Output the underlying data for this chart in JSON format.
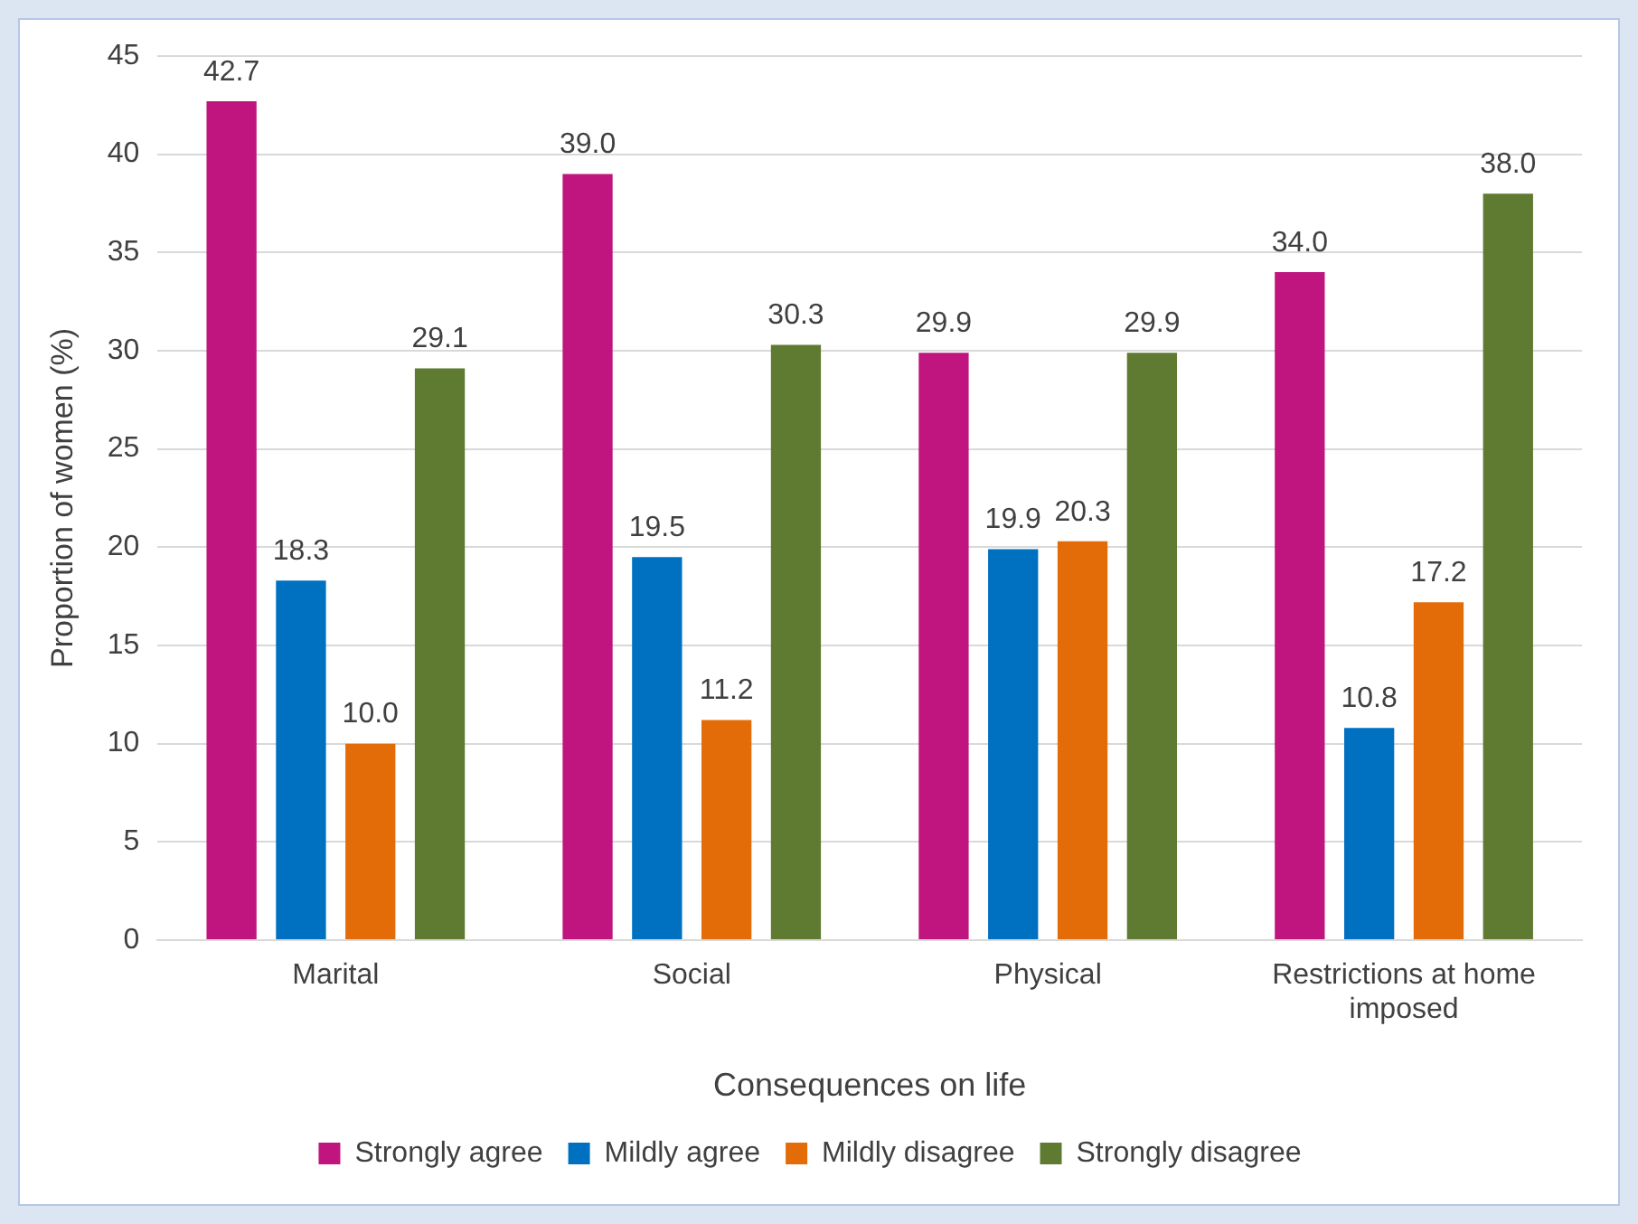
{
  "chart_data": {
    "type": "bar",
    "xlabel": "Consequences on life",
    "ylabel": "Proportion of women (%)",
    "categories": [
      "Marital",
      "Social",
      "Physical",
      "Restrictions at home imposed"
    ],
    "series": [
      {
        "name": "Strongly agree",
        "color": "#c0157f",
        "values": [
          42.7,
          39.0,
          29.9,
          34.0
        ],
        "value_labels": [
          "42.7",
          "39.0",
          "29.9",
          "34.0"
        ]
      },
      {
        "name": "Mildly agree",
        "color": "#0070c0",
        "values": [
          18.3,
          19.5,
          19.9,
          10.8
        ],
        "value_labels": [
          "18.3",
          "19.5",
          "19.9",
          "10.8"
        ]
      },
      {
        "name": "Mildly disagree",
        "color": "#e36c09",
        "values": [
          10.0,
          11.2,
          20.3,
          17.2
        ],
        "value_labels": [
          "10.0",
          "11.2",
          "20.3",
          "17.2"
        ]
      },
      {
        "name": "Strongly disagree",
        "color": "#5f7a31",
        "values": [
          29.1,
          30.3,
          29.9,
          38.0
        ],
        "value_labels": [
          "29.1",
          "30.3",
          "29.9",
          "38.0"
        ]
      }
    ],
    "ylim": [
      0,
      45
    ],
    "yticks": [
      0,
      5,
      10,
      15,
      20,
      25,
      30,
      35,
      40,
      45
    ],
    "grid": "y",
    "legend": "bottom"
  }
}
